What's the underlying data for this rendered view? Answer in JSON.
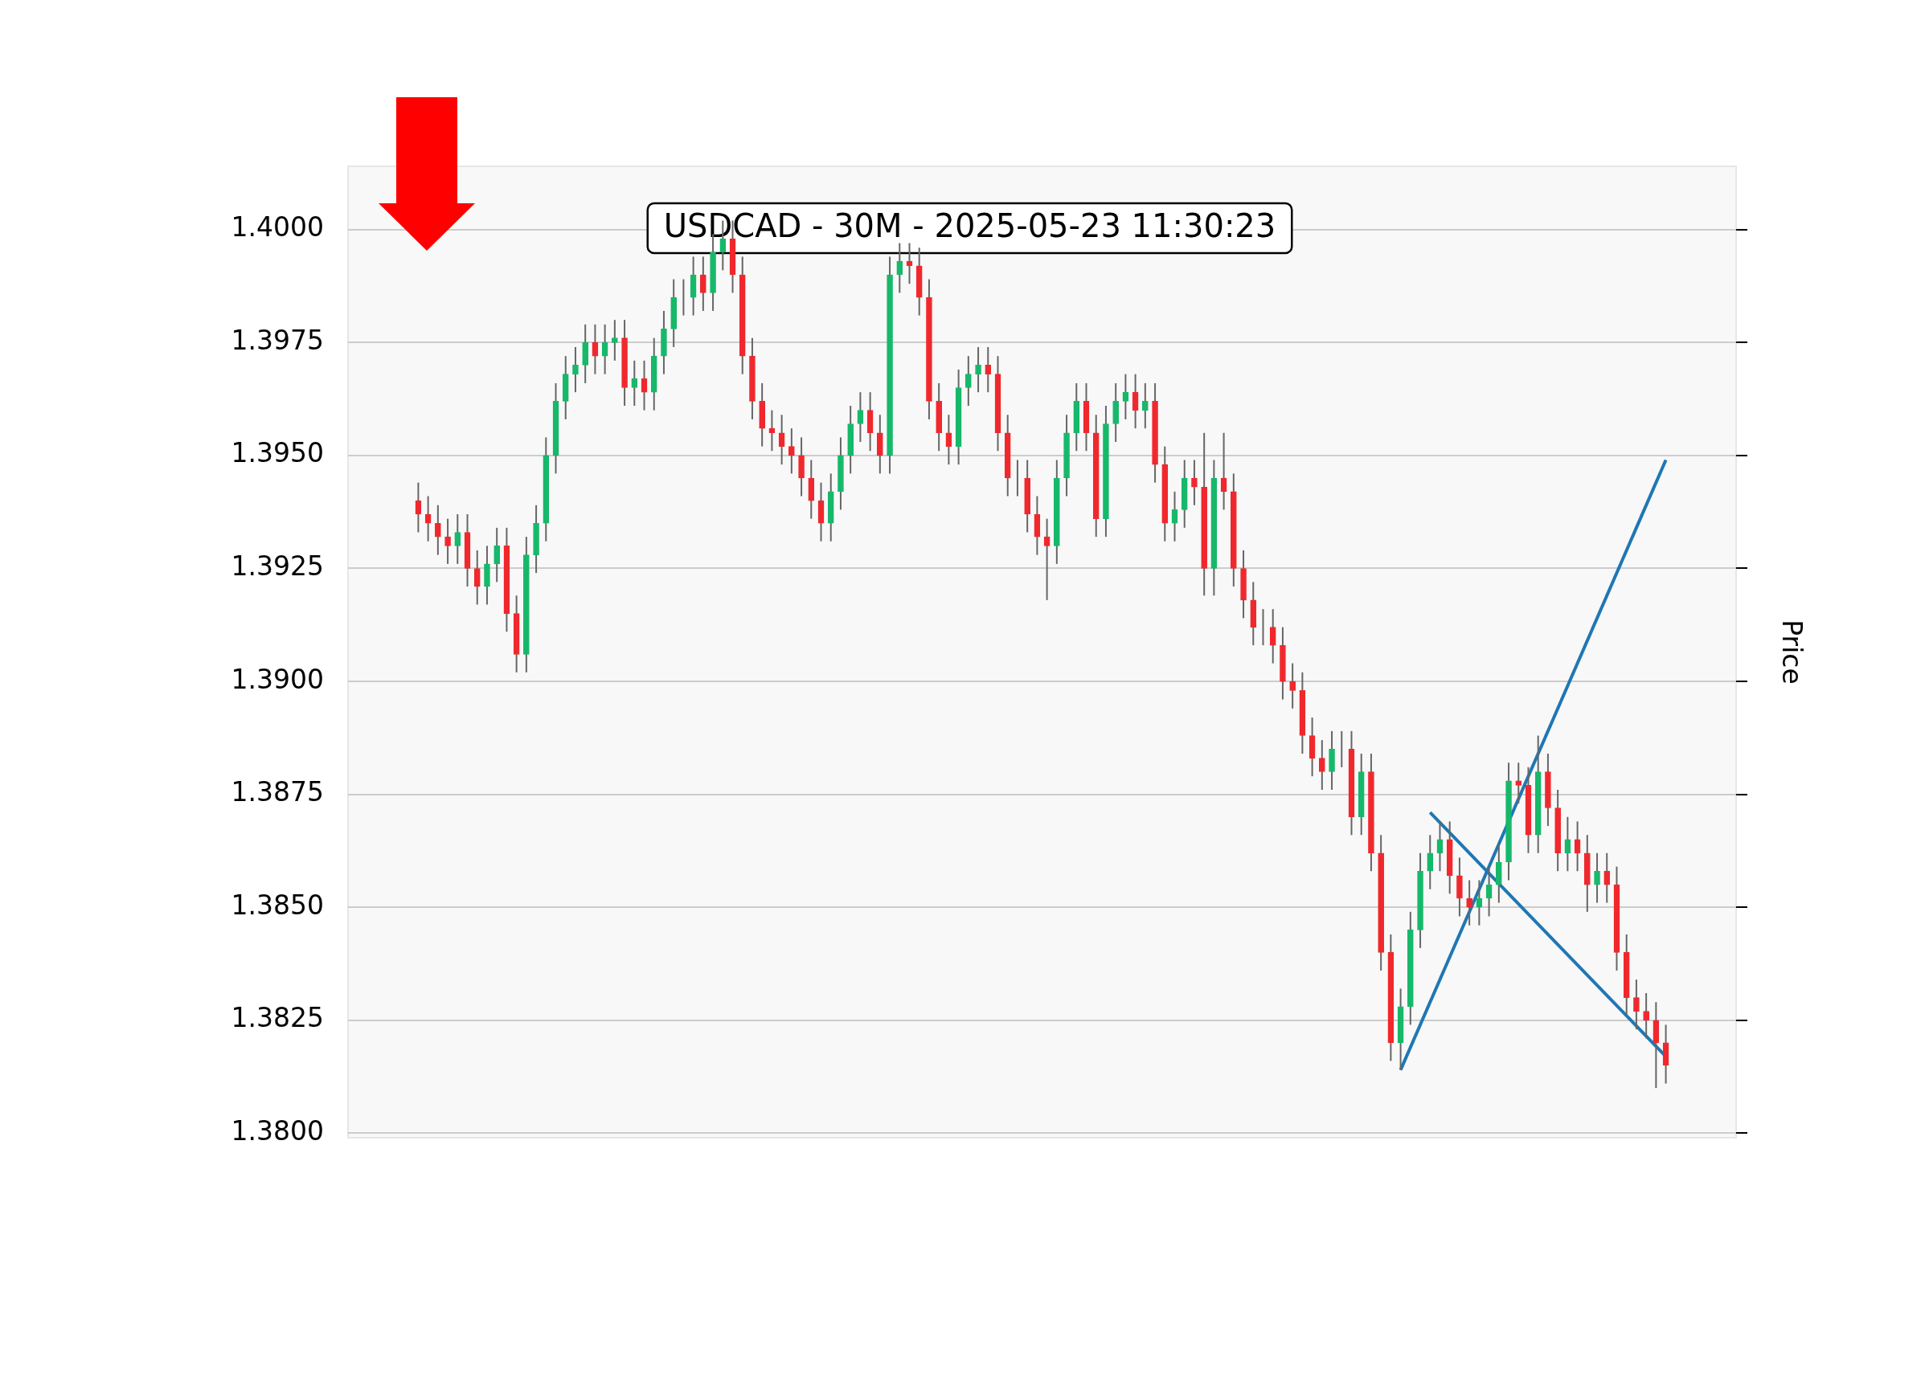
{
  "chart_data": {
    "type": "candlestick",
    "title": "USDCAD - 30M - 2025-05-23 11:30:23",
    "ylabel": "Price",
    "categories": [
      null,
      null,
      null,
      null,
      null,
      null,
      null,
      null,
      null,
      null,
      null,
      null,
      null,
      null,
      null,
      null,
      null,
      null,
      null,
      null,
      null,
      null,
      null,
      null,
      null,
      null,
      null,
      null,
      null,
      null,
      null,
      null,
      null,
      null,
      null,
      null,
      null,
      null,
      null,
      null,
      null,
      null,
      null,
      null,
      null,
      null,
      null,
      null,
      null,
      null,
      null,
      null,
      null,
      null,
      null,
      null,
      null,
      null,
      null,
      null,
      null,
      null,
      null,
      null,
      null,
      null,
      null,
      null,
      null,
      null,
      null,
      null,
      null,
      null,
      null,
      null,
      null,
      null,
      null,
      null,
      null,
      null,
      null,
      null,
      null,
      null,
      null,
      null,
      null,
      null,
      null,
      null,
      null,
      null,
      null,
      null,
      null,
      null,
      null,
      null,
      null,
      null,
      null,
      null,
      null,
      null,
      null,
      null,
      null,
      null,
      null,
      null,
      null,
      null,
      null,
      null,
      null,
      null,
      null,
      null,
      null,
      null,
      null,
      null,
      null,
      null,
      null,
      null
    ],
    "ohlc": [
      [
        1.394,
        1.3944,
        1.3933,
        1.3937
      ],
      [
        1.3937,
        1.3941,
        1.3931,
        1.3935
      ],
      [
        1.3935,
        1.3939,
        1.3928,
        1.3932
      ],
      [
        1.3932,
        1.3936,
        1.3926,
        1.393
      ],
      [
        1.393,
        1.3937,
        1.3926,
        1.3933
      ],
      [
        1.3933,
        1.3937,
        1.3921,
        1.3925
      ],
      [
        1.3925,
        1.3929,
        1.3917,
        1.3921
      ],
      [
        1.3921,
        1.393,
        1.3917,
        1.3926
      ],
      [
        1.3926,
        1.3934,
        1.3922,
        1.393
      ],
      [
        1.393,
        1.3934,
        1.3911,
        1.3915
      ],
      [
        1.3915,
        1.3919,
        1.3902,
        1.3906
      ],
      [
        1.3906,
        1.3932,
        1.3902,
        1.3928
      ],
      [
        1.3928,
        1.3939,
        1.3924,
        1.3935
      ],
      [
        1.3935,
        1.3954,
        1.3931,
        1.395
      ],
      [
        1.395,
        1.3966,
        1.3946,
        1.3962
      ],
      [
        1.3962,
        1.3972,
        1.3958,
        1.3968
      ],
      [
        1.3968,
        1.3974,
        1.3964,
        1.397
      ],
      [
        1.397,
        1.3979,
        1.3966,
        1.3975
      ],
      [
        1.3975,
        1.3979,
        1.3968,
        1.3972
      ],
      [
        1.3972,
        1.3979,
        1.3968,
        1.3975
      ],
      [
        1.3975,
        1.398,
        1.3971,
        1.3976
      ],
      [
        1.3976,
        1.398,
        1.3961,
        1.3965
      ],
      [
        1.3965,
        1.3971,
        1.3961,
        1.3967
      ],
      [
        1.3967,
        1.3971,
        1.396,
        1.3964
      ],
      [
        1.3964,
        1.3976,
        1.396,
        1.3972
      ],
      [
        1.3972,
        1.3982,
        1.3968,
        1.3978
      ],
      [
        1.3978,
        1.3989,
        1.3974,
        1.3985
      ],
      [
        1.3985,
        1.3989,
        1.3981,
        1.3985
      ],
      [
        1.3985,
        1.3994,
        1.3981,
        1.399
      ],
      [
        1.399,
        1.3994,
        1.3982,
        1.3986
      ],
      [
        1.3986,
        1.3999,
        1.3982,
        1.3995
      ],
      [
        1.3995,
        1.4002,
        1.3991,
        1.3998
      ],
      [
        1.3998,
        1.4002,
        1.3986,
        1.399
      ],
      [
        1.399,
        1.3994,
        1.3968,
        1.3972
      ],
      [
        1.3972,
        1.3976,
        1.3958,
        1.3962
      ],
      [
        1.3962,
        1.3966,
        1.3952,
        1.3956
      ],
      [
        1.3956,
        1.396,
        1.3951,
        1.3955
      ],
      [
        1.3955,
        1.3959,
        1.3948,
        1.3952
      ],
      [
        1.3952,
        1.3956,
        1.3946,
        1.395
      ],
      [
        1.395,
        1.3954,
        1.3941,
        1.3945
      ],
      [
        1.3945,
        1.3949,
        1.3936,
        1.394
      ],
      [
        1.394,
        1.3944,
        1.3931,
        1.3935
      ],
      [
        1.3935,
        1.3946,
        1.3931,
        1.3942
      ],
      [
        1.3942,
        1.3954,
        1.3938,
        1.395
      ],
      [
        1.395,
        1.3961,
        1.3946,
        1.3957
      ],
      [
        1.3957,
        1.3964,
        1.3953,
        1.396
      ],
      [
        1.396,
        1.3964,
        1.3951,
        1.3955
      ],
      [
        1.3955,
        1.3959,
        1.3946,
        1.395
      ],
      [
        1.395,
        1.3994,
        1.3946,
        1.399
      ],
      [
        1.399,
        1.3997,
        1.3986,
        1.3993
      ],
      [
        1.3993,
        1.3997,
        1.3988,
        1.3992
      ],
      [
        1.3992,
        1.3996,
        1.3981,
        1.3985
      ],
      [
        1.3985,
        1.3989,
        1.3958,
        1.3962
      ],
      [
        1.3962,
        1.3966,
        1.3951,
        1.3955
      ],
      [
        1.3955,
        1.3959,
        1.3948,
        1.3952
      ],
      [
        1.3952,
        1.3969,
        1.3948,
        1.3965
      ],
      [
        1.3965,
        1.3972,
        1.3961,
        1.3968
      ],
      [
        1.3968,
        1.3974,
        1.3964,
        1.397
      ],
      [
        1.397,
        1.3974,
        1.3964,
        1.3968
      ],
      [
        1.3968,
        1.3972,
        1.3951,
        1.3955
      ],
      [
        1.3955,
        1.3959,
        1.3941,
        1.3945
      ],
      [
        1.3945,
        1.3949,
        1.3941,
        1.3945
      ],
      [
        1.3945,
        1.3949,
        1.3933,
        1.3937
      ],
      [
        1.3937,
        1.3941,
        1.3928,
        1.3932
      ],
      [
        1.3932,
        1.3936,
        1.3918,
        1.393
      ],
      [
        1.393,
        1.3949,
        1.3926,
        1.3945
      ],
      [
        1.3945,
        1.3959,
        1.3941,
        1.3955
      ],
      [
        1.3955,
        1.3966,
        1.3951,
        1.3962
      ],
      [
        1.3962,
        1.3966,
        1.3951,
        1.3955
      ],
      [
        1.3955,
        1.3959,
        1.3932,
        1.3936
      ],
      [
        1.3936,
        1.3961,
        1.3932,
        1.3957
      ],
      [
        1.3957,
        1.3966,
        1.3953,
        1.3962
      ],
      [
        1.3962,
        1.3968,
        1.3958,
        1.3964
      ],
      [
        1.3964,
        1.3968,
        1.3956,
        1.396
      ],
      [
        1.396,
        1.3966,
        1.3956,
        1.3962
      ],
      [
        1.3962,
        1.3966,
        1.3944,
        1.3948
      ],
      [
        1.3948,
        1.3952,
        1.3931,
        1.3935
      ],
      [
        1.3935,
        1.3942,
        1.3931,
        1.3938
      ],
      [
        1.3938,
        1.3949,
        1.3934,
        1.3945
      ],
      [
        1.3945,
        1.3949,
        1.3939,
        1.3943
      ],
      [
        1.3943,
        1.3955,
        1.3919,
        1.3925
      ],
      [
        1.3925,
        1.3949,
        1.3919,
        1.3945
      ],
      [
        1.3945,
        1.3955,
        1.3938,
        1.3942
      ],
      [
        1.3942,
        1.3946,
        1.3921,
        1.3925
      ],
      [
        1.3925,
        1.3929,
        1.3914,
        1.3918
      ],
      [
        1.3918,
        1.3922,
        1.3908,
        1.3912
      ],
      [
        1.3912,
        1.3916,
        1.3908,
        1.3912
      ],
      [
        1.3912,
        1.3916,
        1.3904,
        1.3908
      ],
      [
        1.3908,
        1.3912,
        1.3896,
        1.39
      ],
      [
        1.39,
        1.3904,
        1.3894,
        1.3898
      ],
      [
        1.3898,
        1.3902,
        1.3884,
        1.3888
      ],
      [
        1.3888,
        1.3892,
        1.3879,
        1.3883
      ],
      [
        1.3883,
        1.3887,
        1.3876,
        1.388
      ],
      [
        1.388,
        1.3889,
        1.3876,
        1.3885
      ],
      [
        1.3885,
        1.3889,
        1.3881,
        1.3885
      ],
      [
        1.3885,
        1.3889,
        1.3866,
        1.387
      ],
      [
        1.387,
        1.3884,
        1.3866,
        1.388
      ],
      [
        1.388,
        1.3884,
        1.3858,
        1.3862
      ],
      [
        1.3862,
        1.3866,
        1.3836,
        1.384
      ],
      [
        1.384,
        1.3844,
        1.3816,
        1.382
      ],
      [
        1.382,
        1.3832,
        1.3814,
        1.3828
      ],
      [
        1.3828,
        1.3849,
        1.3824,
        1.3845
      ],
      [
        1.3845,
        1.3862,
        1.3841,
        1.3858
      ],
      [
        1.3858,
        1.3866,
        1.3854,
        1.3862
      ],
      [
        1.3862,
        1.3869,
        1.3858,
        1.3865
      ],
      [
        1.3865,
        1.3869,
        1.3853,
        1.3857
      ],
      [
        1.3857,
        1.3861,
        1.3848,
        1.3852
      ],
      [
        1.3852,
        1.3856,
        1.3846,
        1.385
      ],
      [
        1.385,
        1.3856,
        1.3846,
        1.3852
      ],
      [
        1.3852,
        1.3859,
        1.3848,
        1.3855
      ],
      [
        1.3855,
        1.3864,
        1.3851,
        1.386
      ],
      [
        1.386,
        1.3882,
        1.3856,
        1.3878
      ],
      [
        1.3878,
        1.3882,
        1.3873,
        1.3877
      ],
      [
        1.3877,
        1.3881,
        1.3862,
        1.3866
      ],
      [
        1.3866,
        1.3888,
        1.3862,
        1.388
      ],
      [
        1.388,
        1.3884,
        1.3868,
        1.3872
      ],
      [
        1.3872,
        1.3876,
        1.3858,
        1.3862
      ],
      [
        1.3862,
        1.387,
        1.3858,
        1.3865
      ],
      [
        1.3865,
        1.3869,
        1.3858,
        1.3862
      ],
      [
        1.3862,
        1.3866,
        1.3849,
        1.3855
      ],
      [
        1.3855,
        1.3862,
        1.3851,
        1.3858
      ],
      [
        1.3858,
        1.3862,
        1.3851,
        1.3855
      ],
      [
        1.3855,
        1.3859,
        1.3836,
        1.384
      ],
      [
        1.384,
        1.3844,
        1.3826,
        1.383
      ],
      [
        1.383,
        1.3834,
        1.3823,
        1.3827
      ],
      [
        1.3827,
        1.3831,
        1.3821,
        1.3825
      ],
      [
        1.3825,
        1.3829,
        1.381,
        1.382
      ],
      [
        1.382,
        1.3824,
        1.3811,
        1.3815
      ]
    ],
    "series": [
      {
        "type": "line",
        "color": "#1f77b4",
        "values": [
          null,
          null,
          null,
          null,
          null,
          null,
          null,
          null,
          null,
          null,
          null,
          null,
          null,
          null,
          null,
          null,
          null,
          null,
          null,
          null,
          null,
          null,
          null,
          null,
          null,
          null,
          null,
          null,
          null,
          null,
          null,
          null,
          null,
          null,
          null,
          null,
          null,
          null,
          null,
          null,
          null,
          null,
          null,
          null,
          null,
          null,
          null,
          null,
          null,
          null,
          null,
          null,
          null,
          null,
          null,
          null,
          null,
          null,
          null,
          null,
          null,
          null,
          null,
          null,
          null,
          null,
          null,
          null,
          null,
          null,
          null,
          null,
          null,
          null,
          null,
          null,
          null,
          null,
          null,
          null,
          null,
          null,
          null,
          null,
          null,
          null,
          null,
          null,
          null,
          null,
          null,
          null,
          null,
          null,
          null,
          null,
          null,
          null,
          null,
          null,
          1.3814,
          null,
          null,
          null,
          null,
          null,
          null,
          null,
          null,
          null,
          null,
          null,
          null,
          null,
          null,
          null,
          null,
          null,
          null,
          null,
          null,
          null,
          null,
          null,
          null,
          null,
          null,
          1.3949
        ]
      },
      {
        "type": "line",
        "color": "#1f77b4",
        "values": [
          null,
          null,
          null,
          null,
          null,
          null,
          null,
          null,
          null,
          null,
          null,
          null,
          null,
          null,
          null,
          null,
          null,
          null,
          null,
          null,
          null,
          null,
          null,
          null,
          null,
          null,
          null,
          null,
          null,
          null,
          null,
          null,
          null,
          null,
          null,
          null,
          null,
          null,
          null,
          null,
          null,
          null,
          null,
          null,
          null,
          null,
          null,
          null,
          null,
          null,
          null,
          null,
          null,
          null,
          null,
          null,
          null,
          null,
          null,
          null,
          null,
          null,
          null,
          null,
          null,
          null,
          null,
          null,
          null,
          null,
          null,
          null,
          null,
          null,
          null,
          null,
          null,
          null,
          null,
          null,
          null,
          null,
          null,
          null,
          null,
          null,
          null,
          null,
          null,
          null,
          null,
          null,
          null,
          null,
          null,
          null,
          null,
          null,
          null,
          null,
          null,
          null,
          null,
          1.3871,
          null,
          null,
          null,
          null,
          null,
          null,
          null,
          null,
          null,
          null,
          null,
          null,
          null,
          null,
          null,
          null,
          null,
          null,
          null,
          null,
          null,
          null,
          null,
          1.3817
        ]
      }
    ],
    "ylim": [
      1.3799,
      1.4014
    ],
    "yticks": [
      {
        "value": 1.38,
        "label": "1.3800"
      },
      {
        "value": 1.3825,
        "label": "1.3825"
      },
      {
        "value": 1.385,
        "label": "1.3850"
      },
      {
        "value": 1.3875,
        "label": "1.3875"
      },
      {
        "value": 1.39,
        "label": "1.3900"
      },
      {
        "value": 1.3925,
        "label": "1.3925"
      },
      {
        "value": 1.395,
        "label": "1.3950"
      },
      {
        "value": 1.3975,
        "label": "1.3975"
      },
      {
        "value": 1.4,
        "label": "1.4000"
      }
    ],
    "grid": "y",
    "tick_labels": "y"
  }
}
